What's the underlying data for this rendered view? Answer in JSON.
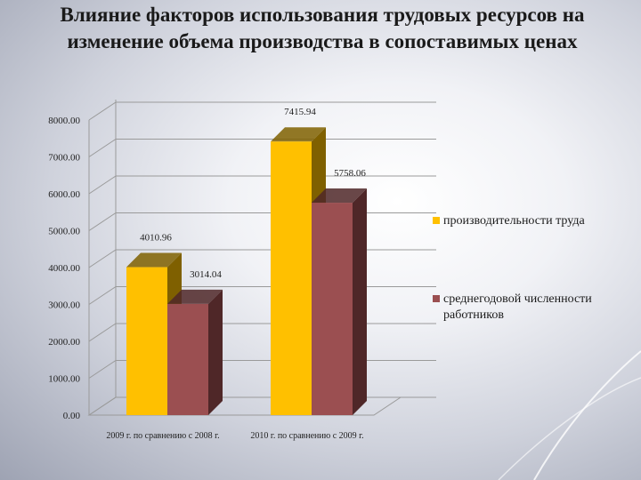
{
  "title_lines": [
    "Влияние факторов использования трудовых ресурсов на",
    "изменение  объема производства в сопоставимых  ценах"
  ],
  "colors": {
    "series1": "#ffc000",
    "series1_side": "#7f6000",
    "series2": "#9b4f51",
    "series2_side": "#4f2728"
  },
  "chart_data": {
    "type": "bar",
    "categories": [
      "2009 г. по сравнению с 2008 г.",
      "2010 г. по сравнению с 2009 г."
    ],
    "series": [
      {
        "name": "производительности труда",
        "values": [
          4010.96,
          7415.94
        ]
      },
      {
        "name": "среднегодовой численности работников",
        "values": [
          3014.04,
          5758.06
        ]
      }
    ],
    "data_labels": [
      [
        "4010.96",
        "7415.94"
      ],
      [
        "3014.04",
        "5758.06"
      ]
    ],
    "y_ticks": [
      "0.00",
      "1000.00",
      "2000.00",
      "3000.00",
      "4000.00",
      "5000.00",
      "6000.00",
      "7000.00",
      "8000.00"
    ],
    "ylim": [
      0,
      8000
    ],
    "grid": true,
    "legend_position": "right",
    "three_d": true
  },
  "legend": [
    {
      "label": "производительности труда"
    },
    {
      "label": "среднегодовой численности работников"
    }
  ]
}
